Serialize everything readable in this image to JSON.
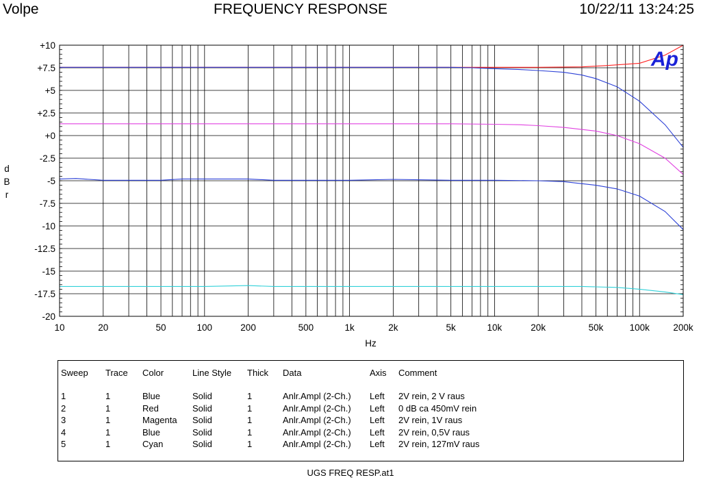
{
  "header": {
    "left": "Volpe",
    "center": "FREQUENCY RESPONSE",
    "right": "10/22/11 13:24:25"
  },
  "logo_text": "Ap",
  "chart_data": {
    "type": "line",
    "xlabel": "Hz",
    "ylabel": "d B r",
    "x_scale": "log",
    "xlim": [
      10,
      200000
    ],
    "ylim": [
      -20,
      10
    ],
    "grid": true,
    "x_tick_labels": [
      {
        "v": 10,
        "t": "10"
      },
      {
        "v": 20,
        "t": "20"
      },
      {
        "v": 50,
        "t": "50"
      },
      {
        "v": 100,
        "t": "100"
      },
      {
        "v": 200,
        "t": "200"
      },
      {
        "v": 500,
        "t": "500"
      },
      {
        "v": 1000,
        "t": "1k"
      },
      {
        "v": 2000,
        "t": "2k"
      },
      {
        "v": 5000,
        "t": "5k"
      },
      {
        "v": 10000,
        "t": "10k"
      },
      {
        "v": 20000,
        "t": "20k"
      },
      {
        "v": 50000,
        "t": "50k"
      },
      {
        "v": 100000,
        "t": "100k"
      },
      {
        "v": 200000,
        "t": "200k"
      }
    ],
    "y_tick_labels": [
      {
        "v": 10,
        "t": "+10"
      },
      {
        "v": 7.5,
        "t": "+7.5"
      },
      {
        "v": 5,
        "t": "+5"
      },
      {
        "v": 2.5,
        "t": "+2.5"
      },
      {
        "v": 0,
        "t": "+0"
      },
      {
        "v": -2.5,
        "t": "-2.5"
      },
      {
        "v": -5,
        "t": "-5"
      },
      {
        "v": -7.5,
        "t": "-7.5"
      },
      {
        "v": -10,
        "t": "-10"
      },
      {
        "v": -12.5,
        "t": "-12.5"
      },
      {
        "v": -15,
        "t": "-15"
      },
      {
        "v": -17.5,
        "t": "-17.5"
      },
      {
        "v": -20,
        "t": "-20"
      }
    ],
    "series": [
      {
        "color": "#ff2020",
        "x": [
          10,
          100,
          1000,
          5000,
          10000,
          20000,
          40000,
          60000,
          100000,
          150000,
          200000
        ],
        "y": [
          7.55,
          7.55,
          7.55,
          7.55,
          7.55,
          7.55,
          7.6,
          7.75,
          8.0,
          8.9,
          10.0
        ]
      },
      {
        "color": "#2a3fd6",
        "x": [
          10,
          100,
          1000,
          5000,
          7000,
          10000,
          15000,
          20000,
          30000,
          40000,
          50000,
          70000,
          100000,
          150000,
          200000
        ],
        "y": [
          7.55,
          7.55,
          7.55,
          7.55,
          7.5,
          7.4,
          7.3,
          7.2,
          7.0,
          6.7,
          6.3,
          5.4,
          3.8,
          1.2,
          -1.3
        ]
      },
      {
        "color": "#e040e0",
        "x": [
          10,
          100,
          1000,
          5000,
          10000,
          15000,
          20000,
          30000,
          50000,
          70000,
          100000,
          150000,
          200000
        ],
        "y": [
          1.3,
          1.3,
          1.3,
          1.3,
          1.25,
          1.2,
          1.1,
          0.9,
          0.5,
          0.0,
          -0.9,
          -2.5,
          -4.3
        ]
      },
      {
        "color": "#2a3fd6",
        "x": [
          10,
          13,
          20,
          50,
          70,
          100,
          200,
          300,
          1000,
          2000,
          5000,
          10000,
          20000,
          30000,
          50000,
          70000,
          100000,
          150000,
          200000
        ],
        "y": [
          -4.8,
          -4.75,
          -4.95,
          -4.95,
          -4.8,
          -4.8,
          -4.8,
          -4.95,
          -4.95,
          -4.85,
          -4.95,
          -4.95,
          -5.0,
          -5.1,
          -5.5,
          -5.9,
          -6.7,
          -8.4,
          -10.4
        ]
      },
      {
        "color": "#2fd0d8",
        "x": [
          10,
          100,
          200,
          300,
          1000,
          5000,
          10000,
          40000,
          70000,
          100000,
          150000,
          200000
        ],
        "y": [
          -16.7,
          -16.7,
          -16.6,
          -16.7,
          -16.7,
          -16.7,
          -16.7,
          -16.7,
          -16.8,
          -17.0,
          -17.3,
          -17.6
        ]
      }
    ]
  },
  "legend_table": {
    "headers": [
      "Sweep",
      "Trace",
      "Color",
      "Line Style",
      "Thick",
      "Data",
      "Axis",
      "Comment"
    ],
    "rows": [
      [
        "1",
        "1",
        "Blue",
        "Solid",
        "1",
        "Anlr.Ampl (2-Ch.)",
        "Left",
        "2V rein, 2 V raus"
      ],
      [
        "2",
        "1",
        "Red",
        "Solid",
        "1",
        "Anlr.Ampl (2-Ch.)",
        "Left",
        "0 dB ca 450mV rein"
      ],
      [
        "3",
        "1",
        "Magenta",
        "Solid",
        "1",
        "Anlr.Ampl (2-Ch.)",
        "Left",
        "2V rein, 1V raus"
      ],
      [
        "4",
        "1",
        "Blue",
        "Solid",
        "1",
        "Anlr.Ampl (2-Ch.)",
        "Left",
        "2V rein, 0,5V raus"
      ],
      [
        "5",
        "1",
        "Cyan",
        "Solid",
        "1",
        "Anlr.Ampl (2-Ch.)",
        "Left",
        "2V rein, 127mV raus"
      ]
    ]
  },
  "footer": "UGS FREQ RESP.at1"
}
